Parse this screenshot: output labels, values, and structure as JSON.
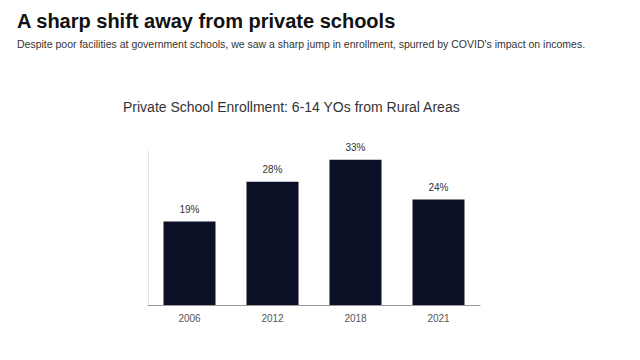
{
  "slide": {
    "title": "A sharp shift away from private schools",
    "subtitle": "Despite poor facilities at government schools, we saw a sharp jump in enrollment, spurred by COVID's impact on incomes."
  },
  "chart_data": {
    "type": "bar",
    "title": "Private School Enrollment: 6-14 YOs from Rural Areas",
    "categories": [
      "2006",
      "2012",
      "2018",
      "2021"
    ],
    "values": [
      19,
      28,
      33,
      24
    ],
    "value_labels": [
      "19%",
      "28%",
      "33%",
      "24%"
    ],
    "color": "#0b1026",
    "ylim": [
      0,
      35
    ],
    "grid": false,
    "data_labels": true,
    "tick_labels": "x"
  }
}
